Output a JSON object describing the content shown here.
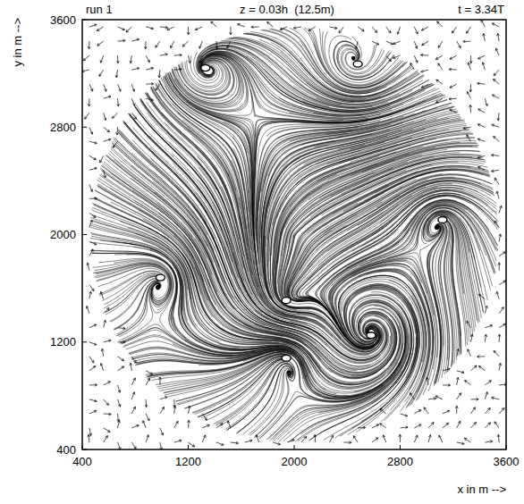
{
  "chart_data": {
    "type": "streamline",
    "title": "run 1",
    "subtitle": "z = 0.03h  (12.5m)",
    "annotations": [
      "t = 3.34T"
    ],
    "x_label": "x in m -->",
    "y_label": "y in m -->",
    "xlim": [
      400,
      3600
    ],
    "ylim": [
      400,
      3600
    ],
    "xticks": [
      400,
      1200,
      2000,
      2800,
      3600
    ],
    "yticks": [
      400,
      1200,
      2000,
      2800,
      3600
    ],
    "vortex_centers": {
      "x": [
        1330,
        2480,
        3120,
        990,
        2580,
        1940,
        1940
      ],
      "y": [
        3240,
        3270,
        2110,
        1680,
        1250,
        1080,
        1510
      ]
    }
  }
}
